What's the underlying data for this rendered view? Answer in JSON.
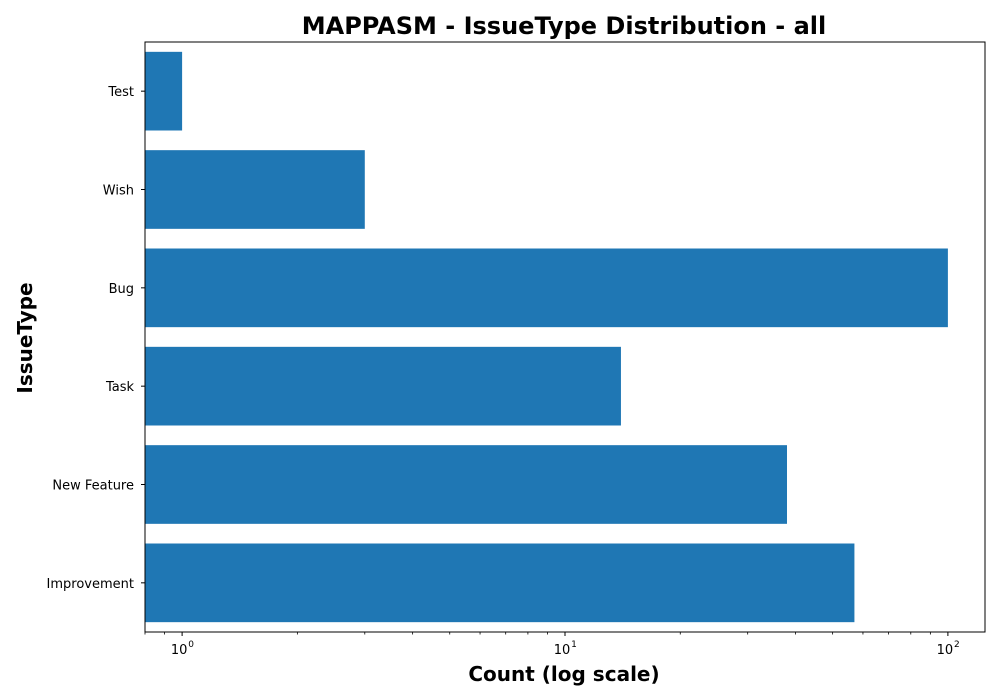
{
  "chart_data": {
    "type": "bar",
    "orientation": "horizontal",
    "title": "MAPPASM - IssueType Distribution - all",
    "xlabel": "Count (log scale)",
    "ylabel": "IssueType",
    "xscale": "log",
    "xlim": [
      0.8,
      125
    ],
    "x_ticks": [
      {
        "value": 1,
        "base": "10",
        "exp": "0"
      },
      {
        "value": 10,
        "base": "10",
        "exp": "1"
      },
      {
        "value": 100,
        "base": "10",
        "exp": "2"
      }
    ],
    "categories": [
      "Improvement",
      "New Feature",
      "Task",
      "Bug",
      "Wish",
      "Test"
    ],
    "values": [
      57,
      38,
      14,
      100,
      3,
      1
    ],
    "bar_color": "#1f77b4",
    "grid": false,
    "legend": "none"
  }
}
